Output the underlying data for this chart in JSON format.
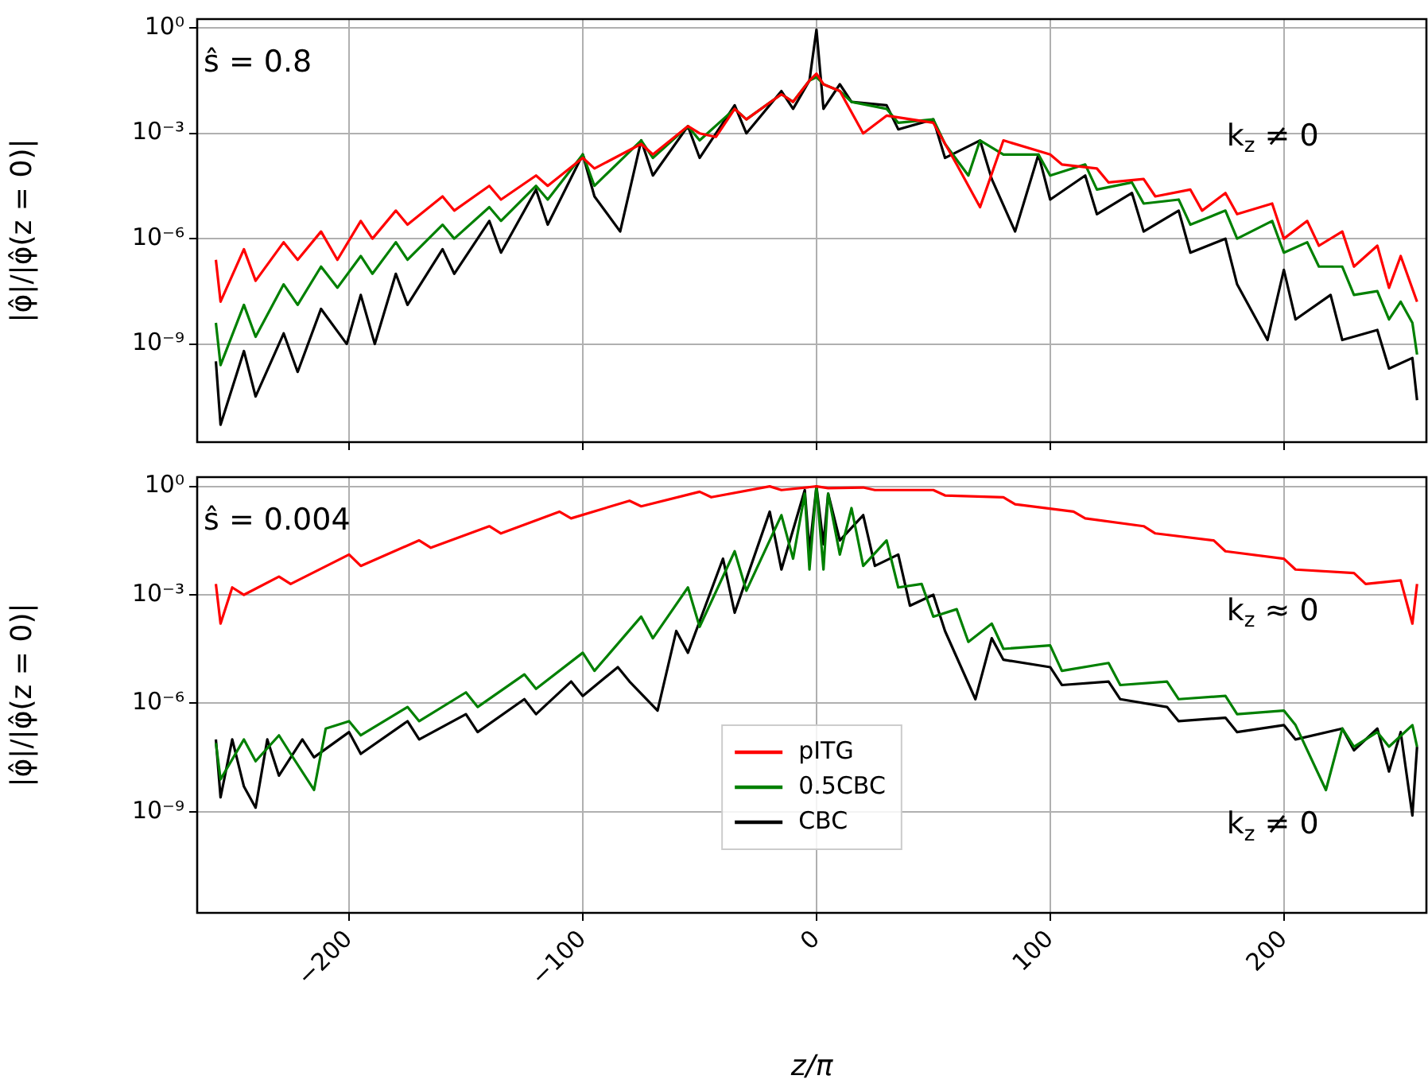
{
  "chart_data": [
    {
      "type": "line",
      "log": "y",
      "grid": true,
      "tick_labels": "y",
      "ylabel": "|φ̂|/|φ̂(z = 0)|",
      "xlim": [
        -265,
        261
      ],
      "xticks": [
        {
          "value": -200,
          "label": null
        },
        {
          "value": -100,
          "label": null
        },
        {
          "value": 0,
          "label": null
        },
        {
          "value": 100,
          "label": null
        },
        {
          "value": 200,
          "label": null
        }
      ],
      "ylim": [
        1.6e-12,
        1.8
      ],
      "yticks": [
        {
          "value": 1,
          "label": "10⁰"
        },
        {
          "value": 0.001,
          "label": "10⁻³"
        },
        {
          "value": 1e-06,
          "label": "10⁻⁶"
        },
        {
          "value": 1e-09,
          "label": "10⁻⁹"
        }
      ],
      "annotations": [
        "ŝ = 0.8",
        "k$_{z}$ ≠ 0"
      ],
      "series": [
        {
          "color": "#ff0000",
          "x": [
            -257,
            -255,
            -245,
            -240,
            -228,
            -222,
            -212,
            -205,
            -195,
            -190,
            -180,
            -175,
            -160,
            -155,
            -140,
            -135,
            -120,
            -115,
            -100,
            -95,
            -75,
            -70,
            -55,
            -50,
            -43,
            -35,
            -30,
            -15,
            -10,
            -3,
            0,
            3,
            10,
            20,
            30,
            50,
            60,
            70,
            80,
            100,
            105,
            120,
            125,
            140,
            145,
            160,
            165,
            175,
            180,
            195,
            200,
            210,
            215,
            225,
            230,
            240,
            245,
            250,
            257
          ],
          "values": [
            2.5e-07,
            1.6e-08,
            5e-07,
            6.3e-08,
            7.9e-07,
            2.5e-07,
            1.6e-06,
            2.5e-07,
            3.2e-06,
            1e-06,
            6.3e-06,
            2.5e-06,
            1.6e-05,
            6.3e-06,
            3.2e-05,
            1.3e-05,
            6.3e-05,
            3.2e-05,
            0.0002,
            0.0001,
            0.0005,
            0.00025,
            0.0016,
            0.001,
            0.00079,
            0.005,
            0.0025,
            0.013,
            0.0079,
            0.032,
            0.05,
            0.025,
            0.016,
            0.001,
            0.0032,
            0.002,
            0.00013,
            7.9e-06,
            0.00063,
            0.00025,
            0.00013,
            0.0001,
            4e-05,
            5e-05,
            1.6e-05,
            2.5e-05,
            6.3e-06,
            2e-05,
            5e-06,
            1e-05,
            1e-06,
            3.2e-06,
            6.3e-07,
            1.6e-06,
            1.6e-07,
            6.3e-07,
            4e-08,
            3.2e-07,
            1.6e-08
          ]
        },
        {
          "color": "#008000",
          "x": [
            -257,
            -255,
            -245,
            -240,
            -228,
            -222,
            -212,
            -205,
            -195,
            -190,
            -180,
            -175,
            -160,
            -155,
            -140,
            -135,
            -120,
            -115,
            -100,
            -95,
            -75,
            -70,
            -55,
            -50,
            -35,
            -30,
            -15,
            -10,
            -3,
            0,
            3,
            10,
            15,
            30,
            35,
            50,
            55,
            65,
            70,
            80,
            95,
            100,
            115,
            120,
            135,
            140,
            155,
            160,
            175,
            180,
            195,
            200,
            210,
            215,
            225,
            230,
            240,
            245,
            250,
            255,
            257
          ],
          "values": [
            4e-09,
            2.5e-10,
            1.3e-08,
            1.6e-09,
            5e-08,
            1.3e-08,
            1.6e-07,
            4e-08,
            3.2e-07,
            1e-07,
            7.9e-07,
            2.5e-07,
            2.5e-06,
            1e-06,
            7.9e-06,
            3.2e-06,
            3.2e-05,
            1.3e-05,
            0.00025,
            3.2e-05,
            0.00063,
            0.0002,
            0.0016,
            0.00063,
            0.005,
            0.0025,
            0.013,
            0.0079,
            0.032,
            0.04,
            0.025,
            0.016,
            0.0079,
            0.005,
            0.002,
            0.0025,
            0.0005,
            6.3e-05,
            0.00063,
            0.00025,
            0.00025,
            6.3e-05,
            0.00013,
            2.5e-05,
            4e-05,
            1e-05,
            1.3e-05,
            2.5e-06,
            6.3e-06,
            1e-06,
            3.2e-06,
            4e-07,
            7.9e-07,
            1.6e-07,
            1.6e-07,
            2.5e-08,
            3.2e-08,
            5e-09,
            1.6e-08,
            4e-09,
            5e-10
          ]
        },
        {
          "color": "#000000",
          "x": [
            -257,
            -255,
            -245,
            -240,
            -228,
            -222,
            -212,
            -201,
            -195,
            -189,
            -180,
            -175,
            -160,
            -155,
            -140,
            -135,
            -120,
            -115,
            -100,
            -95,
            -84,
            -75,
            -70,
            -55,
            -50,
            -35,
            -30,
            -15,
            -10,
            -3,
            0,
            3,
            10,
            15,
            30,
            35,
            50,
            55,
            70,
            75,
            85,
            95,
            100,
            115,
            120,
            135,
            140,
            155,
            160,
            175,
            180,
            193,
            200,
            205,
            220,
            225,
            240,
            245,
            255,
            257
          ],
          "values": [
            3.2e-10,
            5e-12,
            6.3e-10,
            3.2e-11,
            2e-09,
            1.6e-10,
            1e-08,
            1e-09,
            2.5e-08,
            1e-09,
            1e-07,
            1.3e-08,
            5e-07,
            1e-07,
            3.2e-06,
            4e-07,
            2.5e-05,
            2.5e-06,
            0.00025,
            1.6e-05,
            1.6e-06,
            0.00063,
            6.3e-05,
            0.0016,
            0.0002,
            0.0063,
            0.001,
            0.016,
            0.005,
            0.032,
            0.9,
            0.005,
            0.025,
            0.0079,
            0.0063,
            0.0013,
            0.0025,
            0.0002,
            0.00063,
            5e-05,
            1.6e-06,
            0.00025,
            1.3e-05,
            6.3e-05,
            5e-06,
            2e-05,
            1.6e-06,
            6.3e-06,
            4e-07,
            1e-06,
            5e-08,
            1.3e-09,
            1.3e-07,
            5e-09,
            2.5e-08,
            1.3e-09,
            2.5e-09,
            2e-10,
            4e-10,
            2.5e-11
          ]
        }
      ]
    },
    {
      "type": "line",
      "log": "y",
      "grid": true,
      "legend": "bottom",
      "xlabel": "z/π",
      "ylabel": "|φ̂|/|φ̂(z = 0)|",
      "xlim": [
        -265,
        261
      ],
      "xticks": [
        {
          "value": -200,
          "label": "−200"
        },
        {
          "value": -100,
          "label": "−100"
        },
        0,
        100,
        200
      ],
      "ylim": [
        1.6e-12,
        1.8
      ],
      "yticks": [
        {
          "value": 1,
          "label": "10⁰"
        },
        {
          "value": 0.001,
          "label": "10⁻³"
        },
        {
          "value": 1e-06,
          "label": "10⁻⁶"
        },
        {
          "value": 1e-09,
          "label": "10⁻⁹"
        }
      ],
      "annotations": [
        "ŝ = 0.004",
        "k$_{z}$ ≈ 0",
        "k$_{z}$ ≠ 0"
      ],
      "series": [
        {
          "name": "pITG",
          "color": "#ff0000",
          "x": [
            -257,
            -255,
            -250,
            -245,
            -230,
            -225,
            -200,
            -195,
            -170,
            -165,
            -140,
            -135,
            -110,
            -105,
            -80,
            -75,
            -50,
            -45,
            -20,
            -15,
            0,
            5,
            20,
            25,
            50,
            55,
            80,
            85,
            110,
            115,
            140,
            145,
            170,
            175,
            200,
            205,
            230,
            235,
            250,
            255,
            257
          ],
          "values": [
            0.002,
            0.00016,
            0.0016,
            0.001,
            0.0032,
            0.002,
            0.013,
            0.0063,
            0.032,
            0.02,
            0.079,
            0.05,
            0.2,
            0.13,
            0.4,
            0.28,
            0.71,
            0.5,
            1,
            0.79,
            1,
            0.89,
            0.93,
            0.79,
            0.79,
            0.56,
            0.5,
            0.32,
            0.2,
            0.13,
            0.079,
            0.05,
            0.032,
            0.016,
            0.01,
            0.005,
            0.004,
            0.002,
            0.0025,
            0.00016,
            0.002
          ]
        },
        {
          "name": "0.5CBC",
          "color": "#008000",
          "x": [
            -257,
            -255,
            -245,
            -240,
            -230,
            -225,
            -215,
            -210,
            -200,
            -195,
            -175,
            -170,
            -150,
            -145,
            -125,
            -120,
            -100,
            -95,
            -75,
            -70,
            -55,
            -50,
            -35,
            -30,
            -15,
            -10,
            -5,
            -3,
            0,
            3,
            5,
            10,
            15,
            20,
            30,
            35,
            45,
            50,
            60,
            65,
            75,
            80,
            100,
            105,
            125,
            130,
            150,
            155,
            175,
            180,
            200,
            205,
            218,
            225,
            230,
            240,
            245,
            255,
            257
          ],
          "values": [
            7.9e-08,
            7.9e-09,
            1e-07,
            2.5e-08,
            1.3e-07,
            4e-08,
            4e-09,
            2e-07,
            3.2e-07,
            1.3e-07,
            7.9e-07,
            3.2e-07,
            2e-06,
            7.9e-07,
            6.3e-06,
            2.5e-06,
            2.5e-05,
            7.9e-06,
            0.00025,
            6.3e-05,
            0.0016,
            0.00013,
            0.016,
            0.0013,
            0.16,
            0.01,
            0.63,
            0.005,
            1,
            0.005,
            0.63,
            0.013,
            0.25,
            0.0063,
            0.032,
            0.0016,
            0.002,
            0.00025,
            0.0004,
            5e-05,
            0.00016,
            3.2e-05,
            4e-05,
            7.9e-06,
            1.3e-05,
            3.2e-06,
            4e-06,
            1.3e-06,
            1.6e-06,
            5e-07,
            6.3e-07,
            2.5e-07,
            4e-09,
            2e-07,
            6.3e-08,
            1.6e-07,
            6.3e-08,
            2.5e-07,
            6.3e-08
          ]
        },
        {
          "name": "CBC",
          "color": "#000000",
          "x": [
            -257,
            -255,
            -250,
            -245,
            -240,
            -235,
            -230,
            -220,
            -215,
            -200,
            -195,
            -175,
            -170,
            -150,
            -145,
            -125,
            -120,
            -105,
            -100,
            -85,
            -80,
            -68,
            -60,
            -55,
            -40,
            -35,
            -20,
            -15,
            -5,
            -3,
            0,
            3,
            5,
            10,
            20,
            25,
            35,
            40,
            50,
            55,
            68,
            75,
            80,
            100,
            105,
            125,
            130,
            150,
            155,
            175,
            180,
            200,
            205,
            225,
            230,
            240,
            245,
            250,
            255,
            257
          ],
          "values": [
            1e-07,
            2.5e-09,
            1e-07,
            5e-09,
            1.3e-09,
            1e-07,
            1e-08,
            1e-07,
            3.2e-08,
            1.6e-07,
            4e-08,
            3.2e-07,
            1e-07,
            5e-07,
            1.6e-07,
            1.3e-06,
            5e-07,
            4e-06,
            1.6e-06,
            1e-05,
            4e-06,
            6.3e-07,
            0.0001,
            2.5e-05,
            0.01,
            0.00032,
            0.2,
            0.005,
            0.79,
            0.016,
            1,
            0.025,
            0.63,
            0.032,
            0.16,
            0.0063,
            0.013,
            0.0005,
            0.001,
            0.0001,
            1.3e-06,
            6.3e-05,
            1.6e-05,
            1e-05,
            3.2e-06,
            4e-06,
            1.3e-06,
            7.9e-07,
            3.2e-07,
            4e-07,
            1.6e-07,
            2.5e-07,
            1e-07,
            2e-07,
            5e-08,
            2e-07,
            1.3e-08,
            1.6e-07,
            7.9e-10,
            6.3e-08
          ]
        }
      ]
    }
  ]
}
